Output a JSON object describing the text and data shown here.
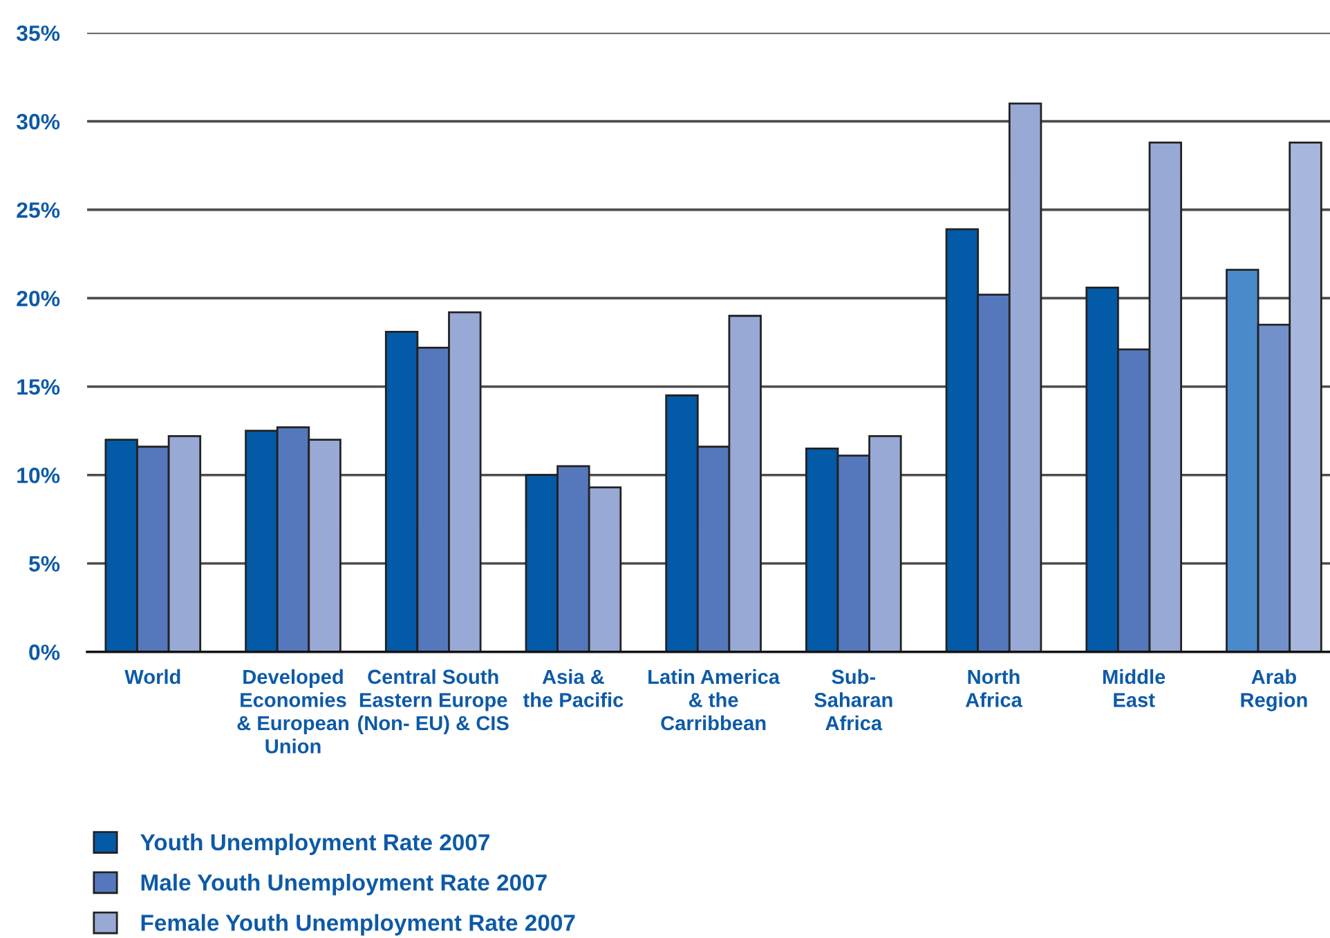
{
  "chart_data": {
    "type": "bar",
    "categories": [
      "World",
      "Developed\nEconomies\n& European\nUnion",
      "Central South\nEastern Europe\n(Non- EU) & CIS",
      "Asia &\nthe Pacific",
      "Latin America\n& the\nCarribbean",
      "Sub-\nSaharan\nAfrica",
      "North\nAfrica",
      "Middle\nEast",
      "Arab\nRegion"
    ],
    "series": [
      {
        "name": "Youth Unemployment Rate 2007",
        "color": "#035aa6",
        "colors": [
          "#035aa6",
          "#035aa6",
          "#035aa6",
          "#035aa6",
          "#035aa6",
          "#035aa6",
          "#035aa6",
          "#035aa6",
          "#4a8acb"
        ],
        "values": [
          12.0,
          12.5,
          18.1,
          10.0,
          14.5,
          11.5,
          23.9,
          20.6,
          21.6
        ]
      },
      {
        "name": "Male Youth Unemployment Rate 2007",
        "color": "#5578bd",
        "colors": [
          "#5578bd",
          "#5578bd",
          "#5578bd",
          "#5578bd",
          "#5578bd",
          "#5578bd",
          "#5578bd",
          "#5578bd",
          "#7291cb"
        ],
        "values": [
          11.6,
          12.7,
          17.2,
          10.5,
          11.6,
          11.1,
          20.2,
          17.1,
          18.5
        ]
      },
      {
        "name": "Female Youth Unemployment Rate 2007",
        "color": "#98a9d5",
        "colors": [
          "#98a9d5",
          "#98a9d5",
          "#98a9d5",
          "#98a9d5",
          "#98a9d5",
          "#98a9d5",
          "#98a9d5",
          "#98a9d5",
          "#a7b6dc"
        ],
        "values": [
          12.2,
          12.0,
          19.2,
          9.3,
          19.0,
          12.2,
          31.0,
          28.8,
          28.8
        ]
      }
    ],
    "ylim": [
      0,
      35
    ],
    "yticks": [
      {
        "value": 0,
        "label": "0%"
      },
      {
        "value": 5,
        "label": "5%"
      },
      {
        "value": 10,
        "label": "10%"
      },
      {
        "value": 15,
        "label": "15%"
      },
      {
        "value": 20,
        "label": "20%"
      },
      {
        "value": 25,
        "label": "25%"
      },
      {
        "value": 30,
        "label": "30%"
      },
      {
        "value": 35,
        "label": "35%"
      }
    ],
    "grid": "y",
    "legend": "bottom left"
  }
}
